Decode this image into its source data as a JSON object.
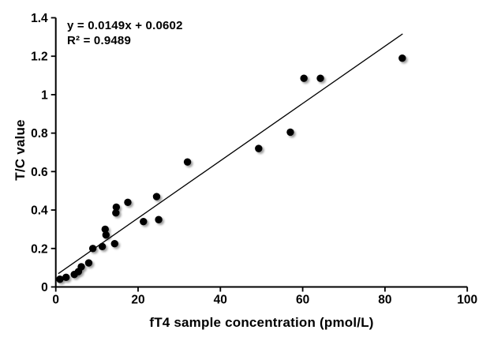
{
  "chart_data": {
    "type": "scatter",
    "title": "",
    "xlabel": "fT4 sample concentration (pmol/L)",
    "ylabel": "T/C value",
    "xlim": [
      0,
      100
    ],
    "ylim": [
      0,
      1.4
    ],
    "x_ticks": [
      0,
      20,
      40,
      60,
      80,
      100
    ],
    "y_tick_labels": [
      "0",
      "0.2",
      "0.4",
      "0.6",
      "0.8",
      "1",
      "1.2",
      "1.4"
    ],
    "grid": false,
    "legend": "none",
    "marker": "filled-circle",
    "points": [
      [
        1,
        0.04
      ],
      [
        2.5,
        0.05
      ],
      [
        4.5,
        0.065
      ],
      [
        5.5,
        0.08
      ],
      [
        6.2,
        0.105
      ],
      [
        8,
        0.125
      ],
      [
        9,
        0.2
      ],
      [
        11.3,
        0.21
      ],
      [
        14.3,
        0.225
      ],
      [
        12.2,
        0.27
      ],
      [
        12,
        0.3
      ],
      [
        14.6,
        0.385
      ],
      [
        14.7,
        0.415
      ],
      [
        17.5,
        0.44
      ],
      [
        21.3,
        0.34
      ],
      [
        24.5,
        0.47
      ],
      [
        25,
        0.35
      ],
      [
        32,
        0.65
      ],
      [
        49.3,
        0.72
      ],
      [
        57,
        0.805
      ],
      [
        60.3,
        1.085
      ],
      [
        64.3,
        1.085
      ],
      [
        84.2,
        1.19
      ]
    ],
    "trendline": {
      "slope": 0.0149,
      "intercept": 0.0602,
      "x_start": 0.6,
      "x_end": 84.3
    },
    "annotation": {
      "equation": "y = 0.0149x + 0.0602",
      "r_squared": "R² = 0.9489"
    },
    "colors": {
      "marker": "#000000",
      "trendline": "#000000",
      "axis": "#000000",
      "text": "#000000",
      "background": "#ffffff"
    }
  }
}
